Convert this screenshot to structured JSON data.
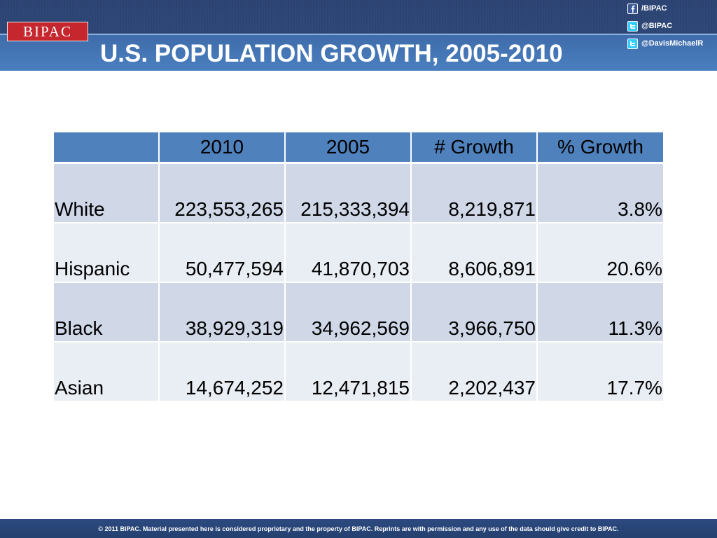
{
  "header": {
    "logo_text": "BIPAC",
    "title": "U.S. POPULATION GROWTH, 2005-2010",
    "social": [
      {
        "icon": "facebook-icon",
        "label": "/BIPAC"
      },
      {
        "icon": "twitter-icon",
        "label": "@BIPAC"
      },
      {
        "icon": "twitter-icon",
        "label": "@DavisMichaelR"
      }
    ]
  },
  "table": {
    "columns": [
      "",
      "2010",
      "2005",
      "# Growth",
      "% Growth"
    ],
    "rows": [
      {
        "group": "White",
        "y2010": "223,553,265",
        "y2005": "215,333,394",
        "growth": "8,219,871",
        "pct": "3.8%"
      },
      {
        "group": "Hispanic",
        "y2010": "50,477,594",
        "y2005": "41,870,703",
        "growth": "8,606,891",
        "pct": "20.6%"
      },
      {
        "group": "Black",
        "y2010": "38,929,319",
        "y2005": "34,962,569",
        "growth": "3,966,750",
        "pct": "11.3%"
      },
      {
        "group": "Asian",
        "y2010": "14,674,252",
        "y2005": "12,471,815",
        "growth": "2,202,437",
        "pct": "17.7%"
      }
    ]
  },
  "footer": {
    "text": "© 2011 BIPAC.  Material presented here is considered proprietary and the property of BIPAC.  Reprints are with permission and any use of the data should give credit to BIPAC."
  },
  "colors": {
    "header_blue": "#3e6aa8",
    "table_header": "#4f81bd",
    "row_odd": "#d0d8e8",
    "row_even": "#e9edf4",
    "logo_red": "#c6262e"
  }
}
